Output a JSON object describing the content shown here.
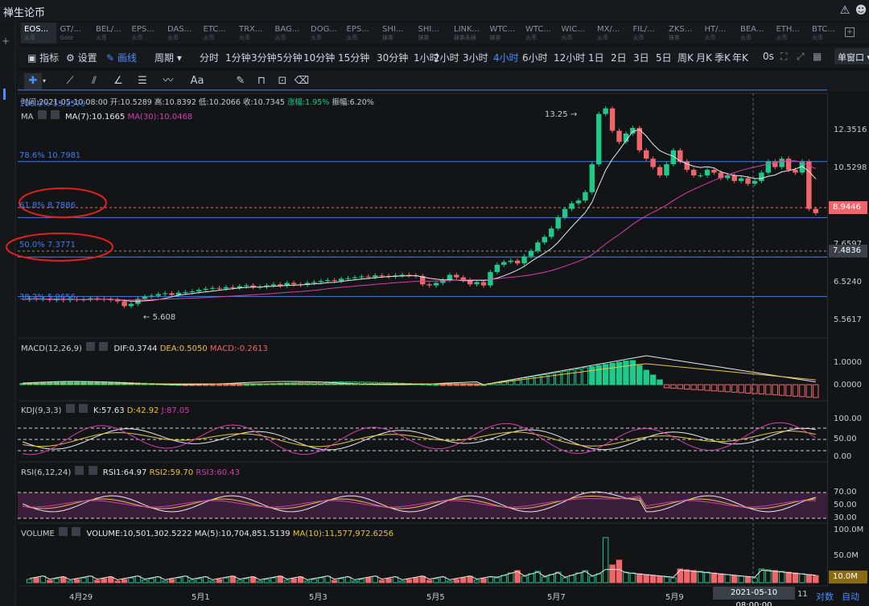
{
  "app": {
    "title": "禅生论币"
  },
  "tabs": [
    {
      "label": "EOS...",
      "sub": "火币",
      "active": true
    },
    {
      "label": "GT/...",
      "sub": "Gate"
    },
    {
      "label": "BEL/...",
      "sub": "火币"
    },
    {
      "label": "EPS...",
      "sub": "火币"
    },
    {
      "label": "DAS...",
      "sub": "火币"
    },
    {
      "label": "ETC...",
      "sub": "火币"
    },
    {
      "label": "TRX...",
      "sub": "火币"
    },
    {
      "label": "BAG...",
      "sub": "火币"
    },
    {
      "label": "DOG...",
      "sub": "火币"
    },
    {
      "label": "EPS...",
      "sub": "火币"
    },
    {
      "label": "SHI...",
      "sub": "抹茶"
    },
    {
      "label": "SHI...",
      "sub": "抹茶"
    },
    {
      "label": "LINK...",
      "sub": "抹茶永续"
    },
    {
      "label": "WTC...",
      "sub": "抹茶"
    },
    {
      "label": "WTC...",
      "sub": "火币"
    },
    {
      "label": "WIC...",
      "sub": "火币"
    },
    {
      "label": "MX/...",
      "sub": "火币"
    },
    {
      "label": "FIL/...",
      "sub": "火币"
    },
    {
      "label": "ZKS...",
      "sub": "抹茶"
    },
    {
      "label": "HT/...",
      "sub": "火币"
    },
    {
      "label": "BEA...",
      "sub": "火币"
    },
    {
      "label": "ETH...",
      "sub": "火币"
    },
    {
      "label": "BTC...",
      "sub": "火币"
    }
  ],
  "toolbar": {
    "indicator": "指标",
    "settings": "设置",
    "draw": "画线",
    "period": "周期",
    "intervals": [
      "分时",
      "1分钟",
      "3分钟",
      "5分钟",
      "10分钟",
      "15分钟",
      "30分钟",
      "1小时",
      "2小时",
      "3小时",
      "4小时",
      "6小时",
      "12小时",
      "1日",
      "2日",
      "3日",
      "5日",
      "周K",
      "月K",
      "季K",
      "年K"
    ],
    "active_interval": "4小时",
    "seconds": "0s",
    "window_mode": "单窗口"
  },
  "ohlc_bar": {
    "time": "时间:2021-05-10 08:00",
    "open": "开:10.5289",
    "high": "高:10.8392",
    "low": "低:10.2066",
    "close": "收:10.7345",
    "change": "涨幅:1.95%",
    "amplitude": "振幅:6.20%"
  },
  "ma": {
    "name": "MA",
    "ma7": "MA(7):10.1665",
    "ma30": "MA(30):10.0468"
  },
  "fib_levels": [
    {
      "label": "100.0% 13.3579",
      "price": 13.3579
    },
    {
      "label": "78.6% 10.7981",
      "price": 10.7981
    },
    {
      "label": "61.8% 8.7886",
      "price": 8.7886
    },
    {
      "label": "50.0% 7.3771",
      "price": 7.3771
    },
    {
      "label": "38.2% 5.9656",
      "price": 5.9656
    }
  ],
  "annotations": {
    "high": "13.25",
    "low": "5.608"
  },
  "price_axis": [
    "12.3516",
    "10.5298",
    "7.6597",
    "6.5240",
    "5.5617"
  ],
  "current_price": "8.9446",
  "cursor_price": "7.4836",
  "macd": {
    "name": "MACD(12,26,9)",
    "dif": "DIF:0.3744",
    "dea": "DEA:0.5050",
    "macd": "MACD:-0.2613",
    "axis": [
      "1.0000",
      "0.0000"
    ]
  },
  "kdj": {
    "name": "KDJ(9,3,3)",
    "k": "K:57.63",
    "d": "D:42.92",
    "j": "J:87.05",
    "axis": [
      "100.00",
      "50.00",
      "0.00"
    ]
  },
  "rsi": {
    "name": "RSI(6,12,24)",
    "rsi1": "RSI1:64.97",
    "rsi2": "RSI2:59.70",
    "rsi3": "RSI3:60.43",
    "axis": [
      "70.00",
      "50.00",
      "30.00"
    ]
  },
  "volume": {
    "name": "VOLUME",
    "vol": "VOLUME:10,501,302.5222",
    "ma5": "MA(5):10,704,851.5139",
    "ma10": "MA(10):11,577,972.6256",
    "axis": [
      "100.0M",
      "50.0M"
    ],
    "tag": "10.0M"
  },
  "x_axis": [
    "4月29",
    "5月1",
    "5月3",
    "5月5",
    "5月7",
    "5月9"
  ],
  "cursor_time": "2021-05-10 08:00:00",
  "cursor_time_suffix": "11",
  "bottom": {
    "log": "对数",
    "auto": "自动"
  },
  "colors": {
    "up": "#1fc98a",
    "down": "#f0666a",
    "ma7": "#e8e8e8",
    "ma30": "#d33fb0",
    "fib": "#3f7df0",
    "dea": "#e8c440",
    "accent": "#4c8dff"
  }
}
